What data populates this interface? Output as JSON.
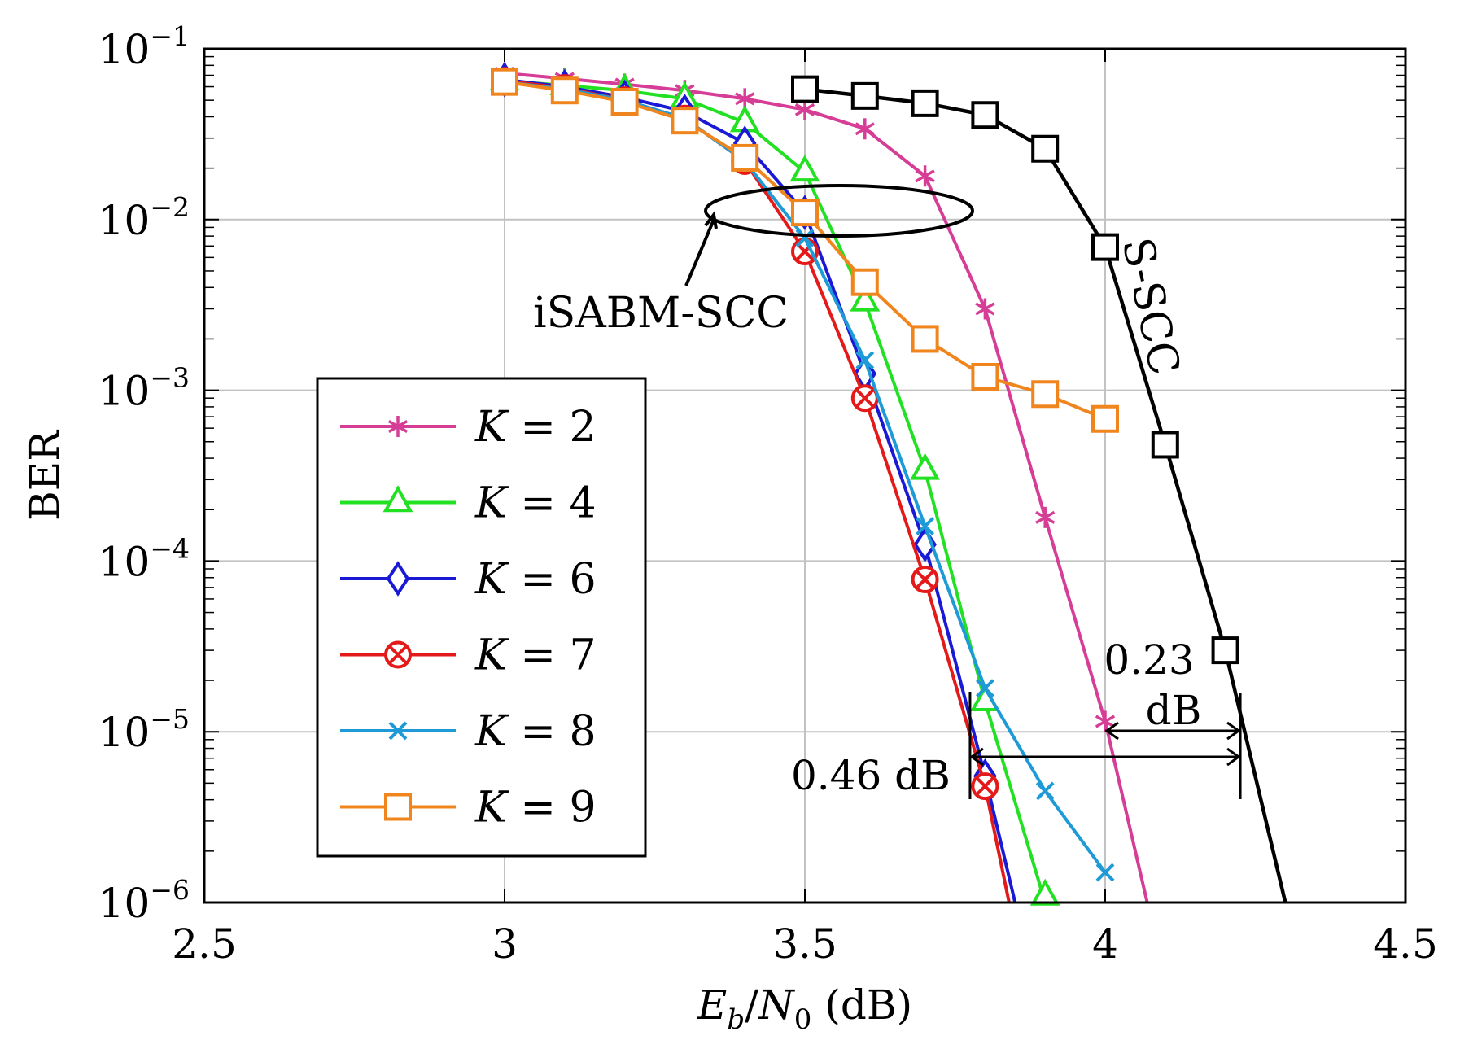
{
  "chart_data": {
    "type": "line",
    "xlabel": {
      "E": "E",
      "b": "b",
      "slash": "/",
      "N": "N",
      "zero": "0",
      "unit": " (dB)"
    },
    "ylabel": "BER",
    "xlim": [
      2.5,
      4.5
    ],
    "ylim": [
      1e-06,
      0.1
    ],
    "yscale": "log",
    "grid": true,
    "x_ticks": [
      {
        "value": 2.5,
        "label": "2.5"
      },
      {
        "value": 3,
        "label": "3"
      },
      {
        "value": 3.5,
        "label": "3.5"
      },
      {
        "value": 4,
        "label": "4"
      },
      {
        "value": 4.5,
        "label": "4.5"
      }
    ],
    "y_ticks": [
      {
        "value": 0.1,
        "base": "10",
        "exp": "−1"
      },
      {
        "value": 0.01,
        "base": "10",
        "exp": "−2"
      },
      {
        "value": 0.001,
        "base": "10",
        "exp": "−3"
      },
      {
        "value": 0.0001,
        "base": "10",
        "exp": "−4"
      },
      {
        "value": 1e-05,
        "base": "10",
        "exp": "−5"
      },
      {
        "value": 1e-06,
        "base": "10",
        "exp": "−6"
      }
    ],
    "legend_placement": "lower-left",
    "series": [
      {
        "name": "K = 2",
        "legend": {
          "var": "K",
          "rest": " = 2"
        },
        "color": "#d63d96",
        "marker": "star",
        "x": [
          3.0,
          3.1,
          3.2,
          3.3,
          3.4,
          3.5,
          3.6,
          3.7,
          3.8,
          3.9,
          4.0,
          4.07
        ],
        "y": [
          0.072,
          0.067,
          0.062,
          0.057,
          0.051,
          0.044,
          0.034,
          0.018,
          0.003,
          0.00018,
          1.15e-05,
          1e-06
        ]
      },
      {
        "name": "K = 4",
        "legend": {
          "var": "K",
          "rest": " = 4"
        },
        "color": "#22e022",
        "marker": "triangle",
        "x": [
          3.0,
          3.1,
          3.2,
          3.3,
          3.4,
          3.5,
          3.6,
          3.7,
          3.8,
          3.9
        ],
        "y": [
          0.065,
          0.061,
          0.057,
          0.051,
          0.037,
          0.019,
          0.0033,
          0.00034,
          1.5e-05,
          1e-06
        ]
      },
      {
        "name": "K = 6",
        "legend": {
          "var": "K",
          "rest": " = 6"
        },
        "color": "#1a1ad6",
        "marker": "diamond",
        "x": [
          3.0,
          3.1,
          3.2,
          3.3,
          3.4,
          3.5,
          3.6,
          3.7,
          3.8,
          3.85
        ],
        "y": [
          0.066,
          0.06,
          0.052,
          0.043,
          0.028,
          0.011,
          0.00125,
          0.000125,
          5.5e-06,
          1e-06
        ]
      },
      {
        "name": "K = 7",
        "legend": {
          "var": "K",
          "rest": " = 7"
        },
        "color": "#e41a1a",
        "marker": "circle-x",
        "x": [
          3.0,
          3.1,
          3.2,
          3.3,
          3.4,
          3.5,
          3.6,
          3.7,
          3.8,
          3.84
        ],
        "y": [
          0.065,
          0.059,
          0.05,
          0.039,
          0.022,
          0.0065,
          0.0009,
          7.8e-05,
          4.8e-06,
          1e-06
        ]
      },
      {
        "name": "K = 8",
        "legend": {
          "var": "K",
          "rest": " = 8"
        },
        "color": "#1e9bd7",
        "marker": "x",
        "x": [
          3.0,
          3.1,
          3.2,
          3.3,
          3.4,
          3.5,
          3.6,
          3.7,
          3.8,
          3.9,
          4.0
        ],
        "y": [
          0.064,
          0.058,
          0.05,
          0.039,
          0.022,
          0.0078,
          0.0015,
          0.00016,
          1.8e-05,
          4.5e-06,
          1.5e-06
        ]
      },
      {
        "name": "K = 9",
        "legend": {
          "var": "K",
          "rest": " = 9"
        },
        "color": "#f0851e",
        "marker": "square",
        "x": [
          3.0,
          3.1,
          3.2,
          3.3,
          3.4,
          3.5,
          3.6,
          3.7,
          3.8,
          3.9,
          4.0
        ],
        "y": [
          0.064,
          0.057,
          0.049,
          0.038,
          0.023,
          0.011,
          0.0043,
          0.002,
          0.0012,
          0.00095,
          0.00068
        ]
      },
      {
        "name": "S-SCC",
        "color": "#000000",
        "marker": "square",
        "x": [
          3.5,
          3.6,
          3.7,
          3.8,
          3.9,
          4.0,
          4.1,
          4.2,
          4.3
        ],
        "y": [
          0.058,
          0.053,
          0.048,
          0.041,
          0.026,
          0.0069,
          0.00048,
          3e-05,
          1e-06
        ]
      }
    ],
    "annotations": {
      "isabm": "iSABM-SCC",
      "sscc": "S-SCC",
      "gap_a": "0.46 dB",
      "gap_b_num": "0.23",
      "gap_b_unit": "dB"
    }
  }
}
